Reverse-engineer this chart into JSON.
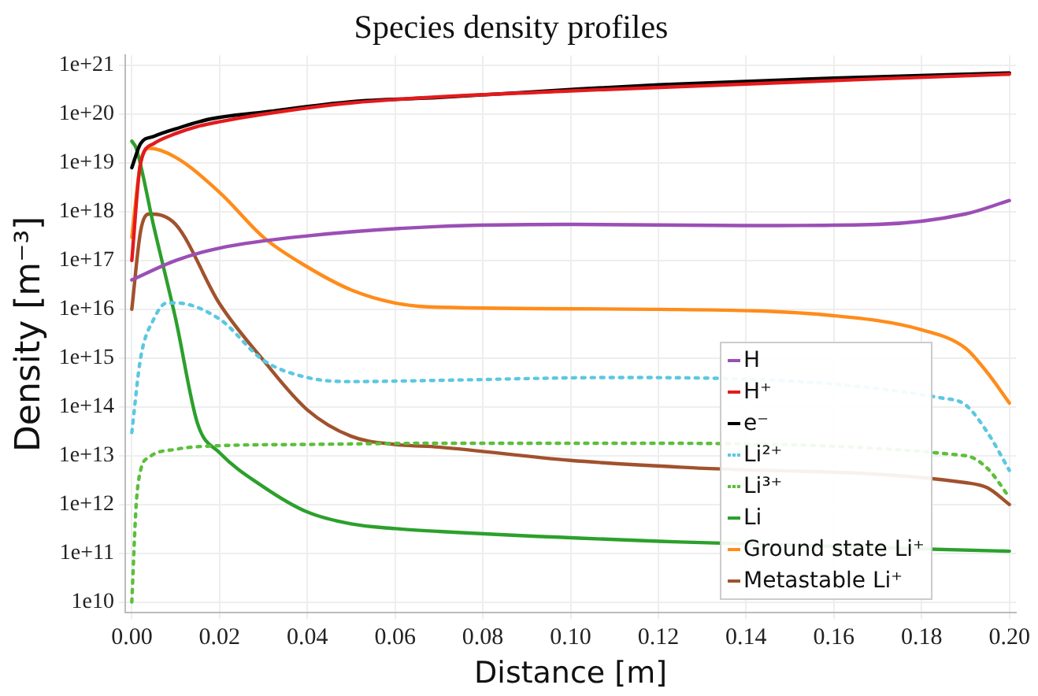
{
  "chart_data": {
    "type": "line",
    "title": "Species density profiles",
    "xlabel": "Distance [m]",
    "ylabel": "Density [m⁻³]",
    "log": "y",
    "grid": true,
    "legend": "bottom right",
    "marker": "none",
    "line_style": "solid",
    "xlim": [
      -0.0015,
      0.2015
    ],
    "xticks": [
      {
        "value": 0,
        "label": "0.00"
      },
      {
        "value": 0.02,
        "label": "0.02"
      },
      {
        "value": 0.04,
        "label": "0.04"
      },
      {
        "value": 0.06,
        "label": "0.06"
      },
      {
        "value": 0.08,
        "label": "0.08"
      },
      {
        "value": 0.1,
        "label": "0.10"
      },
      {
        "value": 0.12,
        "label": "0.12"
      },
      {
        "value": 0.14,
        "label": "0.14"
      },
      {
        "value": 0.16,
        "label": "0.16"
      },
      {
        "value": 0.18,
        "label": "0.18"
      },
      {
        "value": 0.2,
        "label": "0.20"
      }
    ],
    "ylim": [
      6000000000.0,
      1.6e+21
    ],
    "yticks": [
      {
        "value": 10000000000.0,
        "label": "1e10"
      },
      {
        "value": 100000000000.0,
        "label": "1e+11"
      },
      {
        "value": 1000000000000.0,
        "label": "1e+12"
      },
      {
        "value": 10000000000000.0,
        "label": "1e+13"
      },
      {
        "value": 100000000000000.0,
        "label": "1e+14"
      },
      {
        "value": 1000000000000000.0,
        "label": "1e+15"
      },
      {
        "value": 1e+16,
        "label": "1e+16"
      },
      {
        "value": 1e+17,
        "label": "1e+17"
      },
      {
        "value": 1e+18,
        "label": "1e+18"
      },
      {
        "value": 1e+19,
        "label": "1e+19"
      },
      {
        "value": 1e+20,
        "label": "1e+20"
      },
      {
        "value": 1e+21,
        "label": "1e+21"
      }
    ],
    "series": [
      {
        "name": "H",
        "color": "#9b4fb5",
        "x": [
          0,
          0.01,
          0.02,
          0.04,
          0.07,
          0.1,
          0.14,
          0.17,
          0.19,
          0.2
        ],
        "values": [
          4e+16,
          1e+17,
          1.8e+17,
          3.2e+17,
          5e+17,
          5.5e+17,
          5.2e+17,
          5.5e+17,
          9e+17,
          1.7e+18
        ]
      },
      {
        "name": "H⁺",
        "color": "#e41a1c",
        "x": [
          0,
          0.002,
          0.005,
          0.01,
          0.015,
          0.02,
          0.03,
          0.05,
          0.1,
          0.2
        ],
        "values": [
          1e+17,
          1e+19,
          2.5e+19,
          4e+19,
          5.6e+19,
          7e+19,
          1e+20,
          1.7e+20,
          3e+20,
          6.6e+20
        ]
      },
      {
        "name": "e⁻",
        "color": "#000000",
        "x": [
          0,
          0.002,
          0.005,
          0.01,
          0.018,
          0.03,
          0.05,
          0.07,
          0.1,
          0.12,
          0.16,
          0.2
        ],
        "values": [
          8e+18,
          2.5e+19,
          3.5e+19,
          5e+19,
          8e+19,
          1.1e+20,
          1.8e+20,
          2.2e+20,
          3.2e+20,
          4e+20,
          5.5e+20,
          7e+20
        ]
      },
      {
        "name": "Li²⁺",
        "color": "#5bc8e0",
        "line_style": "dotted",
        "x": [
          0,
          0.002,
          0.005,
          0.008,
          0.01,
          0.02,
          0.03,
          0.04,
          0.05,
          0.07,
          0.11,
          0.185,
          0.19,
          0.195,
          0.2
        ],
        "values": [
          30000000000000.0,
          1000000000000000.0,
          6300000000000000.0,
          1.35e+16,
          1.35e+16,
          6300000000000000.0,
          900000000000000.0,
          400000000000000.0,
          330000000000000.0,
          350000000000000.0,
          400000000000000.0,
          150000000000000.0,
          110000000000000.0,
          30000000000000.0,
          5000000000000.0
        ]
      },
      {
        "name": "Li³⁺",
        "color": "#5cbf3c",
        "line_style": "dotted",
        "x": [
          0,
          0.001,
          0.002,
          0.004,
          0.01,
          0.02,
          0.04,
          0.07,
          0.11,
          0.19,
          0.195,
          0.2
        ],
        "values": [
          10000000000.0,
          1000000000000.0,
          5000000000000.0,
          9300000000000.0,
          13500000000000.0,
          16000000000000.0,
          17000000000000.0,
          18000000000000.0,
          18000000000000.0,
          10000000000000.0,
          5500000000000.0,
          1400000000000.0
        ]
      },
      {
        "name": "Li",
        "color": "#2ca02c",
        "x": [
          0,
          0.001,
          0.005,
          0.01,
          0.015,
          0.02,
          0.03,
          0.04,
          0.05,
          0.06,
          0.07,
          0.125,
          0.2
        ],
        "values": [
          2.8e+19,
          2e+19,
          5e+17,
          6300000000000000.0,
          45000000000000.0,
          11500000000000.0,
          2300000000000.0,
          700000000000.0,
          400000000000.0,
          320000000000.0,
          280000000000.0,
          170000000000.0,
          110000000000.0
        ]
      },
      {
        "name": "Ground state Li⁺",
        "color": "#ff8c1a",
        "x": [
          0,
          0.002,
          0.004,
          0.01,
          0.02,
          0.03,
          0.04,
          0.05,
          0.06,
          0.07,
          0.12,
          0.16,
          0.18,
          0.19,
          0.195,
          0.2
        ],
        "values": [
          3e+17,
          1e+19,
          2e+19,
          1.3e+19,
          2.5e+18,
          3e+17,
          7.4e+16,
          2.5e+16,
          1.35e+16,
          1.1e+16,
          1e+16,
          7400000000000000.0,
          3800000000000000.0,
          1600000000000000.0,
          500000000000000.0,
          120000000000000.0
        ]
      },
      {
        "name": "Metastable Li⁺",
        "color": "#a0522d",
        "x": [
          0,
          0.002,
          0.004,
          0.01,
          0.02,
          0.03,
          0.04,
          0.05,
          0.06,
          0.07,
          0.1,
          0.125,
          0.19,
          0.195,
          0.2
        ],
        "values": [
          1e+16,
          4e+17,
          9e+17,
          5.5e+17,
          1.3e+16,
          900000000000000.0,
          87000000000000.0,
          25000000000000.0,
          17000000000000.0,
          15000000000000.0,
          8000000000000.0,
          5800000000000.0,
          2800000000000.0,
          2200000000000.0,
          1000000000000.0
        ]
      }
    ]
  }
}
